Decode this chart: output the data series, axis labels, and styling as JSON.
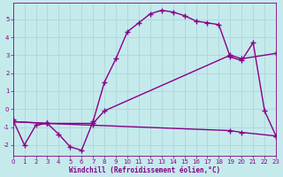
{
  "xlabel": "Windchill (Refroidissement éolien,°C)",
  "xlim": [
    0,
    23
  ],
  "ylim": [
    -2.6,
    5.9
  ],
  "yticks": [
    -2,
    -1,
    0,
    1,
    2,
    3,
    4,
    5
  ],
  "xticks": [
    0,
    1,
    2,
    3,
    4,
    5,
    6,
    7,
    8,
    9,
    10,
    11,
    12,
    13,
    14,
    15,
    16,
    17,
    18,
    19,
    20,
    21,
    22,
    23
  ],
  "background_color": "#c5eaec",
  "grid_color": "#b0d8dc",
  "line_color": "#880088",
  "line1_x": [
    0,
    1,
    2,
    3,
    4,
    5,
    6,
    7,
    8,
    9,
    10,
    11,
    12,
    13,
    14,
    15,
    16,
    17,
    18,
    19,
    20,
    21,
    22,
    23
  ],
  "line1_y": [
    -0.6,
    -2.0,
    -0.9,
    -0.8,
    -1.4,
    -2.1,
    -2.3,
    -0.7,
    1.5,
    2.8,
    4.3,
    4.8,
    5.3,
    5.5,
    5.4,
    5.2,
    4.9,
    4.8,
    4.7,
    2.9,
    2.7,
    3.7,
    -0.1,
    -1.5
  ],
  "line2_x": [
    0,
    3,
    7,
    8,
    19,
    20,
    23
  ],
  "line2_y": [
    -0.7,
    -0.8,
    -0.8,
    -0.1,
    3.0,
    2.8,
    3.1
  ],
  "line3_x": [
    0,
    3,
    7,
    19,
    20,
    23
  ],
  "line3_y": [
    -0.7,
    -0.8,
    -0.9,
    -1.2,
    -1.3,
    -1.5
  ],
  "marker_size": 2.5,
  "line_width": 1.0
}
